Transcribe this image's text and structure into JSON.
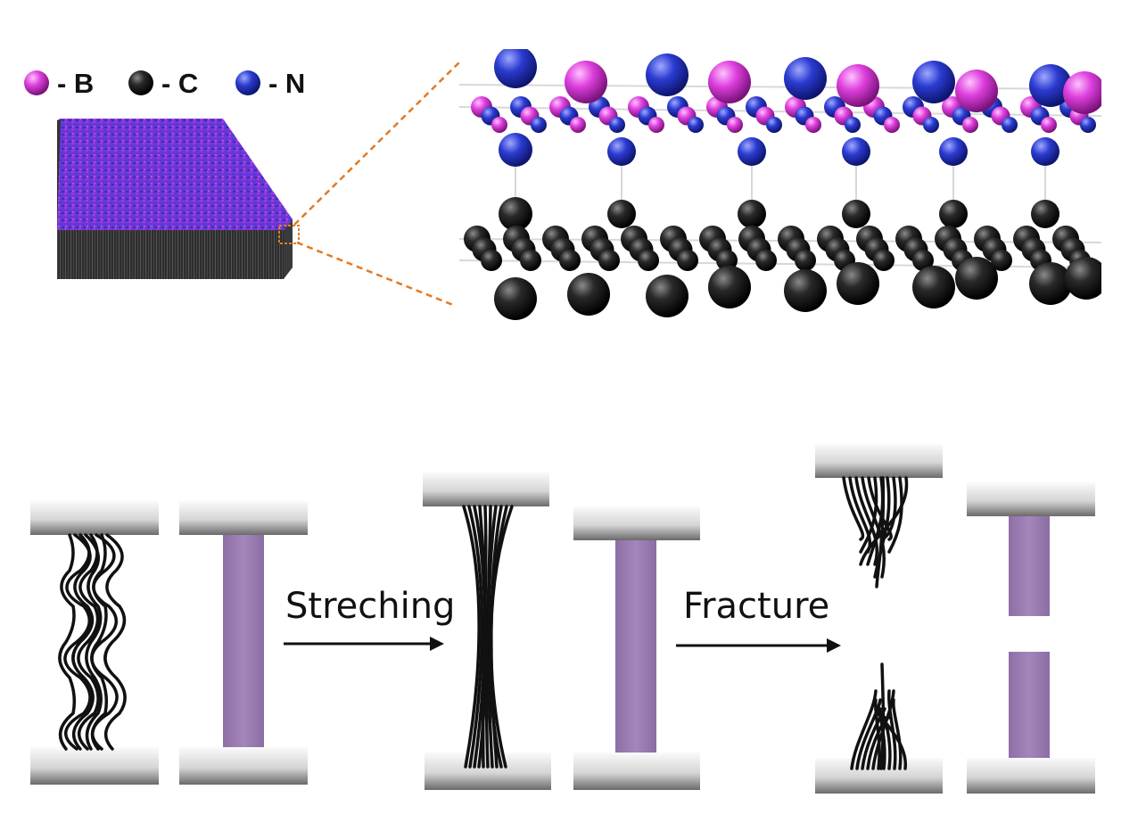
{
  "legend": [
    {
      "label": "- B",
      "color": "#d63ad6",
      "element": "boron"
    },
    {
      "label": "- C",
      "color": "#1c1c1c",
      "element": "carbon"
    },
    {
      "label": "- N",
      "color": "#2a38cc",
      "element": "nitrogen"
    }
  ],
  "process": {
    "step1_label": "Streching",
    "step2_label": "Fracture"
  },
  "colors": {
    "boron": "#d63ad6",
    "carbon": "#1c1c1c",
    "nitrogen": "#2a38cc",
    "slab_top": "#7a35d6",
    "specimen": "#9a7bb0",
    "zoom_lines": "#e07a26",
    "grip": "#c9c9c9"
  }
}
